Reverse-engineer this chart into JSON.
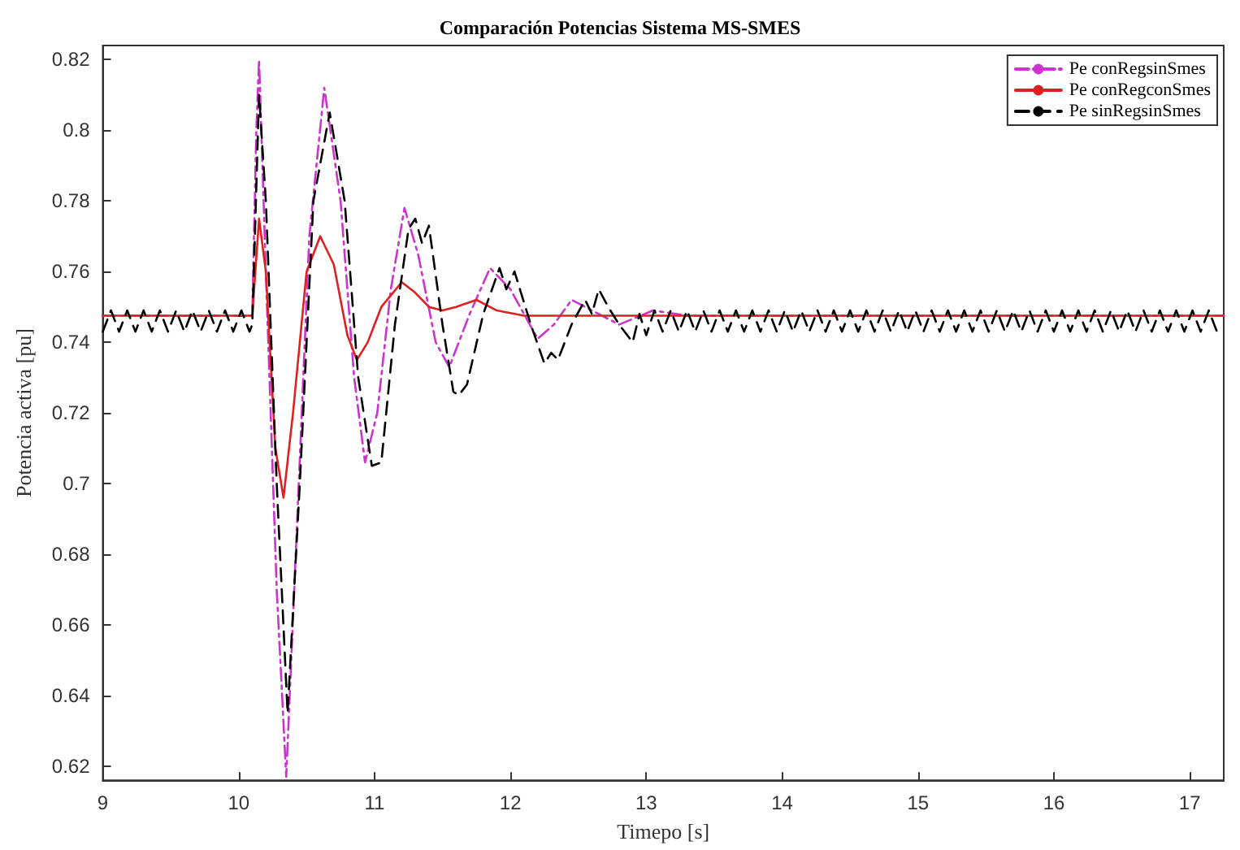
{
  "chart_data": {
    "type": "line",
    "title": "Comparación Potencias Sistema MS-SMES",
    "xlabel": "Timepo [s]",
    "ylabel": "Potencia activa [pu]",
    "xlim": [
      9,
      17.25
    ],
    "ylim": [
      0.616,
      0.824
    ],
    "xticks": [
      9,
      10,
      11,
      12,
      13,
      14,
      15,
      16,
      17
    ],
    "yticks": [
      0.62,
      0.64,
      0.66,
      0.68,
      0.7,
      0.72,
      0.74,
      0.76,
      0.78,
      0.8,
      0.82
    ],
    "grid": false,
    "legend": "top right",
    "marker": "none",
    "series": [
      {
        "name": "Pe conRegsinSmes",
        "color": "#cc33cc",
        "line_style": "dashdot",
        "x": [
          9,
          10.1,
          10.13,
          10.15,
          10.2,
          10.28,
          10.35,
          10.42,
          10.52,
          10.63,
          10.75,
          10.85,
          10.93,
          11.02,
          11.12,
          11.22,
          11.32,
          11.45,
          11.55,
          11.7,
          11.85,
          12.0,
          12.2,
          12.32,
          12.45,
          12.6,
          12.8,
          13.05,
          13.3,
          17.25
        ],
        "values": [
          0.7475,
          0.7475,
          0.8,
          0.82,
          0.76,
          0.67,
          0.617,
          0.68,
          0.77,
          0.812,
          0.78,
          0.73,
          0.706,
          0.72,
          0.755,
          0.778,
          0.765,
          0.74,
          0.733,
          0.748,
          0.761,
          0.755,
          0.741,
          0.745,
          0.752,
          0.749,
          0.745,
          0.749,
          0.7475,
          0.7475
        ]
      },
      {
        "name": "Pe conRegconSmes",
        "color": "#e02020",
        "line_style": "solid",
        "x": [
          9,
          10.1,
          10.15,
          10.2,
          10.27,
          10.33,
          10.4,
          10.5,
          10.6,
          10.7,
          10.8,
          10.87,
          10.95,
          11.05,
          11.2,
          11.3,
          11.4,
          11.5,
          11.6,
          11.75,
          11.9,
          12.1,
          17.25
        ],
        "values": [
          0.7475,
          0.7475,
          0.775,
          0.76,
          0.71,
          0.696,
          0.72,
          0.76,
          0.77,
          0.762,
          0.742,
          0.735,
          0.74,
          0.75,
          0.757,
          0.754,
          0.75,
          0.749,
          0.75,
          0.752,
          0.749,
          0.7475,
          0.7475
        ]
      },
      {
        "name": "Pe sinRegsinSmes",
        "color": "#000000",
        "line_style": "dashed",
        "x": [
          9.0,
          9.06,
          9.12,
          9.18,
          9.24,
          9.3,
          9.36,
          9.42,
          9.48,
          9.54,
          9.6,
          9.66,
          9.72,
          9.78,
          9.84,
          9.9,
          9.96,
          10.02,
          10.08,
          10.1,
          10.15,
          10.2,
          10.28,
          10.36,
          10.45,
          10.55,
          10.67,
          10.78,
          10.88,
          10.98,
          11.05,
          11.15,
          11.25,
          11.3,
          11.35,
          11.4,
          11.5,
          11.58,
          11.62,
          11.68,
          11.8,
          11.92,
          11.97,
          12.03,
          12.15,
          12.25,
          12.3,
          12.35,
          12.45,
          12.55,
          12.6,
          12.65,
          12.72,
          12.8,
          12.9,
          12.95,
          13.0,
          13.06,
          13.12,
          13.18,
          13.24,
          13.3,
          13.36,
          13.42,
          13.48,
          13.54,
          13.6,
          13.66,
          13.72,
          13.78,
          13.84,
          13.9,
          13.96,
          14.02,
          14.08,
          14.14,
          14.2,
          14.26,
          14.32,
          14.38,
          14.44,
          14.5,
          14.56,
          14.62,
          14.68,
          14.74,
          14.8,
          14.86,
          14.92,
          14.98,
          15.04,
          15.1,
          15.16,
          15.22,
          15.28,
          15.34,
          15.4,
          15.46,
          15.52,
          15.58,
          15.64,
          15.7,
          15.76,
          15.82,
          15.88,
          15.94,
          16.0,
          16.06,
          16.12,
          16.18,
          16.24,
          16.3,
          16.36,
          16.42,
          16.48,
          16.54,
          16.6,
          16.66,
          16.72,
          16.78,
          16.84,
          16.9,
          16.96,
          17.02,
          17.08,
          17.14,
          17.2
        ],
        "values": [
          0.743,
          0.749,
          0.743,
          0.749,
          0.743,
          0.749,
          0.743,
          0.749,
          0.743,
          0.749,
          0.743,
          0.749,
          0.743,
          0.749,
          0.743,
          0.749,
          0.743,
          0.749,
          0.743,
          0.745,
          0.81,
          0.78,
          0.7,
          0.635,
          0.7,
          0.78,
          0.805,
          0.78,
          0.73,
          0.705,
          0.706,
          0.745,
          0.772,
          0.775,
          0.768,
          0.773,
          0.745,
          0.726,
          0.725,
          0.728,
          0.748,
          0.761,
          0.755,
          0.76,
          0.745,
          0.734,
          0.737,
          0.735,
          0.745,
          0.752,
          0.748,
          0.755,
          0.75,
          0.745,
          0.74,
          0.748,
          0.742,
          0.749,
          0.743,
          0.749,
          0.743,
          0.749,
          0.743,
          0.749,
          0.743,
          0.749,
          0.743,
          0.749,
          0.743,
          0.749,
          0.743,
          0.749,
          0.743,
          0.749,
          0.743,
          0.749,
          0.743,
          0.749,
          0.743,
          0.749,
          0.743,
          0.749,
          0.743,
          0.749,
          0.743,
          0.749,
          0.743,
          0.749,
          0.743,
          0.749,
          0.743,
          0.749,
          0.743,
          0.749,
          0.743,
          0.749,
          0.743,
          0.749,
          0.743,
          0.749,
          0.743,
          0.749,
          0.743,
          0.749,
          0.743,
          0.749,
          0.743,
          0.749,
          0.743,
          0.749,
          0.743,
          0.749,
          0.743,
          0.749,
          0.743,
          0.749,
          0.743,
          0.749,
          0.743,
          0.749,
          0.743,
          0.749,
          0.743,
          0.749,
          0.743,
          0.749,
          0.743
        ]
      }
    ]
  }
}
